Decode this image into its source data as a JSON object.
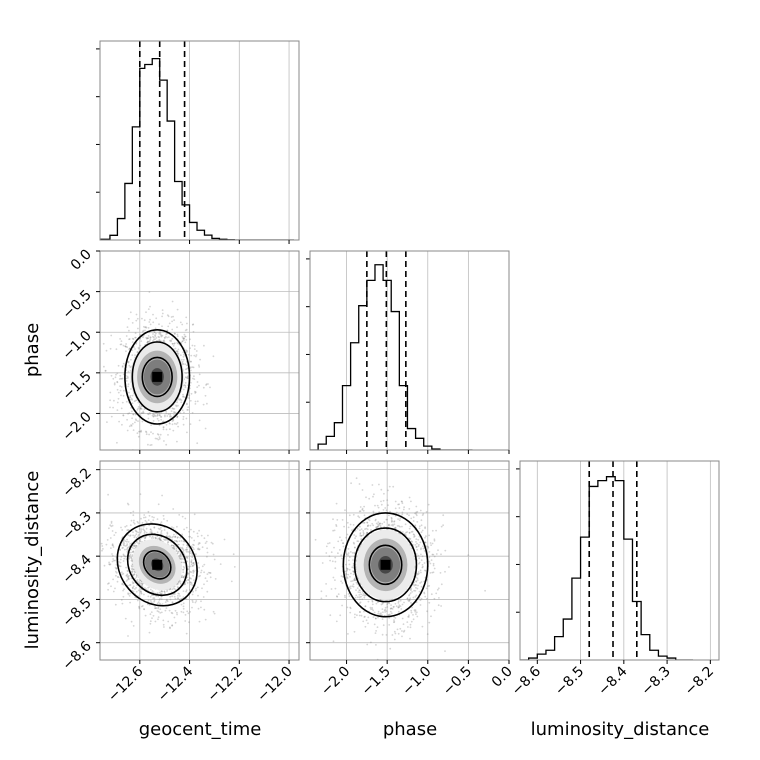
{
  "chart_data": {
    "type": "corner",
    "parameters": [
      "geocent_time",
      "phase",
      "luminosity_distance"
    ],
    "axes": {
      "geocent_time": {
        "range": [
          -12.76,
          -11.96
        ],
        "ticks": [
          -12.6,
          -12.4,
          -12.2,
          -12.0
        ],
        "tick_labels": [
          "−12.6",
          "−12.4",
          "−12.2",
          "−12.0"
        ]
      },
      "phase": {
        "range": [
          -2.45,
          0.0
        ],
        "ticks": [
          -2.0,
          -1.5,
          -1.0,
          -0.5,
          0.0
        ],
        "tick_labels": [
          "−2.0",
          "−1.5",
          "−1.0",
          "−0.5",
          "0.0"
        ]
      },
      "luminosity_distance": {
        "range": [
          -8.64,
          -8.18
        ],
        "ticks": [
          -8.6,
          -8.5,
          -8.4,
          -8.3,
          -8.2
        ],
        "tick_labels": [
          "−8.6",
          "−8.5",
          "−8.4",
          "−8.3",
          "−8.2"
        ]
      }
    },
    "histograms": [
      {
        "parameter": "geocent_time",
        "bin_edges": [
          -12.76,
          -12.72,
          -12.69,
          -12.66,
          -12.63,
          -12.6,
          -12.58,
          -12.55,
          -12.52,
          -12.49,
          -12.46,
          -12.43,
          -12.4,
          -12.37,
          -12.34,
          -12.31,
          -12.28,
          -12.25,
          -12.22,
          -12.19,
          -12.16,
          -12.13,
          -12.1,
          -12.07,
          -12.04,
          -12.01,
          -11.98
        ],
        "counts": [
          0.004,
          0.024,
          0.11,
          0.29,
          0.58,
          0.88,
          0.9,
          0.93,
          0.82,
          0.61,
          0.3,
          0.18,
          0.09,
          0.05,
          0.025,
          0.008,
          0.004,
          0.001,
          0.0,
          0.0,
          0.0,
          0.0,
          0.0,
          0.0,
          0.0,
          0.0
        ],
        "ymax": 1.0,
        "quantiles": [
          -12.6,
          -12.52,
          -12.42
        ]
      },
      {
        "parameter": "phase",
        "bin_edges": [
          -2.45,
          -2.35,
          -2.25,
          -2.15,
          -2.05,
          -1.95,
          -1.85,
          -1.75,
          -1.65,
          -1.55,
          -1.45,
          -1.35,
          -1.25,
          -1.15,
          -1.05,
          -0.95,
          -0.85,
          -0.75,
          -0.65,
          -0.55,
          -0.45
        ],
        "counts": [
          0.0,
          0.03,
          0.07,
          0.14,
          0.33,
          0.55,
          0.74,
          0.87,
          0.95,
          0.87,
          0.71,
          0.33,
          0.11,
          0.06,
          0.02,
          0.005,
          0.0,
          0.0,
          0.0,
          0.0
        ],
        "ymax": 1.0,
        "quantiles": [
          -1.75,
          -1.51,
          -1.27
        ]
      },
      {
        "parameter": "luminosity_distance",
        "bin_edges": [
          -8.64,
          -8.62,
          -8.6,
          -8.58,
          -8.56,
          -8.54,
          -8.52,
          -8.5,
          -8.48,
          -8.46,
          -8.44,
          -8.42,
          -8.4,
          -8.38,
          -8.36,
          -8.34,
          -8.32,
          -8.3,
          -8.28,
          -8.26,
          -8.24
        ],
        "counts": [
          0.0,
          0.01,
          0.03,
          0.05,
          0.12,
          0.21,
          0.42,
          0.63,
          0.89,
          0.92,
          0.94,
          0.92,
          0.62,
          0.3,
          0.13,
          0.05,
          0.02,
          0.01,
          0.0,
          0.0
        ],
        "ymax": 1.0,
        "quantiles": [
          -8.48,
          -8.425,
          -8.37
        ]
      }
    ],
    "joint_panels": [
      {
        "x": "geocent_time",
        "y": "phase",
        "center": [
          -12.53,
          -1.55
        ],
        "contour_levels": [
          {
            "half_widths": [
              0.06,
              0.24
            ],
            "rotation_deg": 0
          },
          {
            "half_widths": [
              0.1,
              0.43
            ],
            "rotation_deg": 0
          },
          {
            "half_widths": [
              0.13,
              0.58
            ],
            "rotation_deg": 0
          }
        ]
      },
      {
        "x": "geocent_time",
        "y": "luminosity_distance",
        "center": [
          -12.53,
          -8.42
        ],
        "contour_levels": [
          {
            "half_widths": [
              0.05,
              0.035
            ],
            "rotation_deg": 40
          },
          {
            "half_widths": [
              0.11,
              0.075
            ],
            "rotation_deg": 40
          },
          {
            "half_widths": [
              0.15,
              0.1
            ],
            "rotation_deg": 40
          }
        ]
      },
      {
        "x": "phase",
        "y": "luminosity_distance",
        "center": [
          -1.52,
          -8.42
        ],
        "contour_levels": [
          {
            "half_widths": [
              0.2,
              0.045
            ],
            "rotation_deg": 0
          },
          {
            "half_widths": [
              0.38,
              0.085
            ],
            "rotation_deg": 0
          },
          {
            "half_widths": [
              0.52,
              0.12
            ],
            "rotation_deg": 0
          }
        ]
      }
    ],
    "grid": true,
    "colors": {
      "scatter": "#888888",
      "line": "#000000",
      "grid": "#bdbdbd"
    }
  }
}
